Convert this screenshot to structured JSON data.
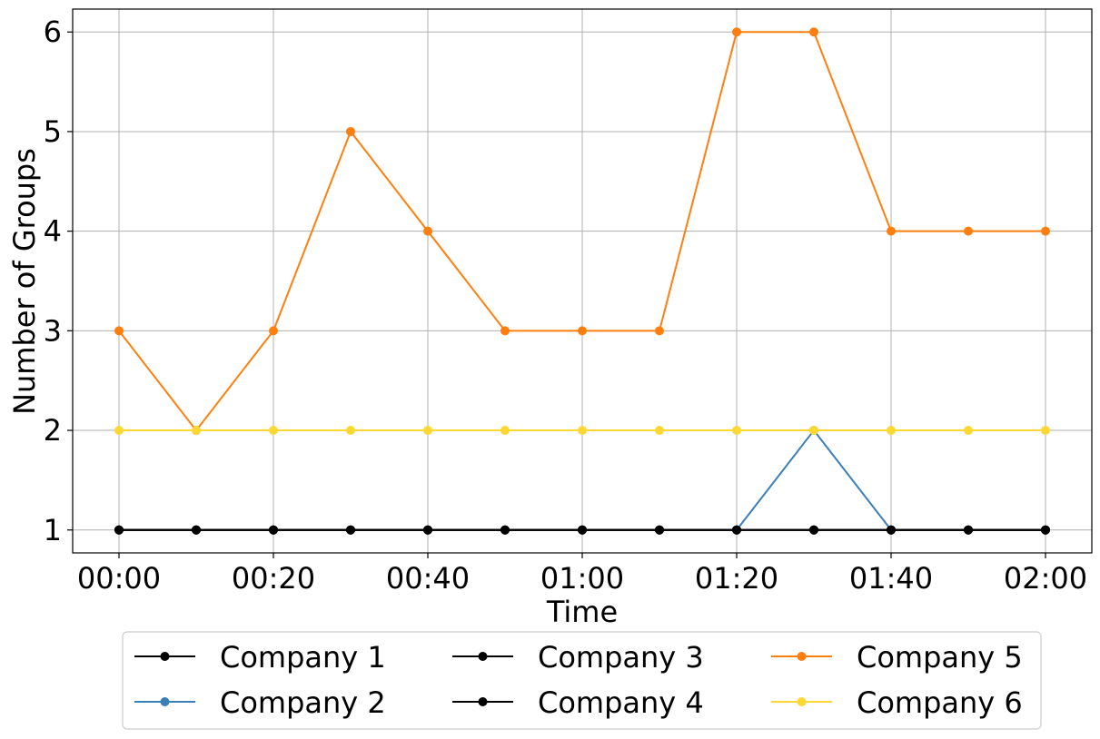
{
  "chart_data": {
    "type": "line",
    "title": "",
    "xlabel": "Time",
    "ylabel": "Number of Groups",
    "x": [
      "00:00",
      "00:10",
      "00:20",
      "00:30",
      "00:40",
      "00:50",
      "01:00",
      "01:10",
      "01:20",
      "01:30",
      "01:40",
      "01:50",
      "02:00"
    ],
    "x_ticks": [
      "00:00",
      "00:20",
      "00:40",
      "01:00",
      "01:20",
      "01:40",
      "02:00"
    ],
    "y_ticks": [
      1,
      2,
      3,
      4,
      5,
      6
    ],
    "ylim": [
      0.77,
      6.23
    ],
    "grid": true,
    "legend_placement": "below",
    "series": [
      {
        "name": "Company 1",
        "color": "#000000",
        "values": [
          1,
          1,
          1,
          1,
          1,
          1,
          1,
          1,
          1,
          1,
          1,
          1,
          1
        ]
      },
      {
        "name": "Company 2",
        "color": "#3a7fb8",
        "values": [
          1,
          1,
          1,
          1,
          1,
          1,
          1,
          1,
          1,
          2,
          1,
          1,
          1
        ]
      },
      {
        "name": "Company 3",
        "color": "#000000",
        "values": [
          1,
          1,
          1,
          1,
          1,
          1,
          1,
          1,
          1,
          1,
          1,
          1,
          1
        ]
      },
      {
        "name": "Company 4",
        "color": "#000000",
        "values": [
          1,
          1,
          1,
          1,
          1,
          1,
          1,
          1,
          1,
          1,
          1,
          1,
          1
        ]
      },
      {
        "name": "Company 5",
        "color": "#ff7f0e",
        "values": [
          3,
          2,
          3,
          5,
          4,
          3,
          3,
          3,
          6,
          6,
          4,
          4,
          4
        ]
      },
      {
        "name": "Company 6",
        "color": "#fdd835",
        "values": [
          2,
          2,
          2,
          2,
          2,
          2,
          2,
          2,
          2,
          2,
          2,
          2,
          2
        ]
      }
    ],
    "draw_order": [
      1,
      4,
      5,
      0,
      2,
      3
    ]
  }
}
